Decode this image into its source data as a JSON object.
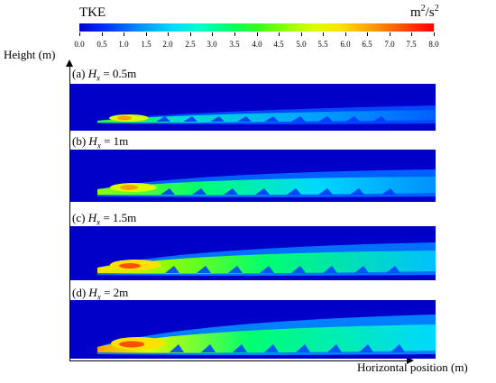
{
  "colorbar": {
    "title": "TKE",
    "unit_base": "m",
    "unit_exp1": "2",
    "unit_mid": "/s",
    "unit_exp2": "2",
    "ticks": [
      "0.0",
      "0.5",
      "1.0",
      "1.5",
      "2.0",
      "2.5",
      "3.0",
      "3.5",
      "4.0",
      "4.5",
      "5.0",
      "5.5",
      "6.0",
      "6.5",
      "7.0",
      "7.5",
      "8.0"
    ],
    "colors": [
      "#0000c8",
      "#0090ff",
      "#00ffc8",
      "#30ff20",
      "#d8ff00",
      "#ffa000",
      "#ff0000"
    ]
  },
  "axes": {
    "y_label": "Height (m)",
    "x_label": "Horizontal position (m)"
  },
  "panels": [
    {
      "prefix": "(a) ",
      "var": "H",
      "sub": "x",
      "value": " = 0.5m"
    },
    {
      "prefix": "(b) ",
      "var": "H",
      "sub": "x",
      "value": " = 1m"
    },
    {
      "prefix": "(c) ",
      "var": "H",
      "sub": "x",
      "value": " = 1.5m"
    },
    {
      "prefix": "(d) ",
      "var": "H",
      "sub": "x",
      "value": " = 2m"
    }
  ]
}
